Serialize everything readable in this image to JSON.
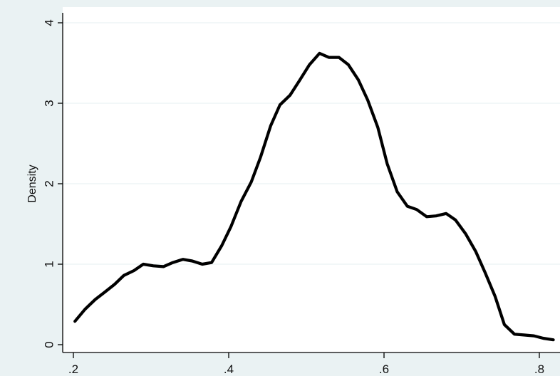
{
  "chart_data": {
    "type": "line",
    "title": "",
    "xlabel": "",
    "ylabel": "Density",
    "xlim": [
      0.2,
      0.82
    ],
    "ylim": [
      0,
      4
    ],
    "grid": true,
    "legend": "none",
    "x_ticks": [
      {
        "value": 0.2,
        "label": ".2"
      },
      {
        "value": 0.4,
        "label": ".4"
      },
      {
        "value": 0.6,
        "label": ".6"
      },
      {
        "value": 0.8,
        "label": ".8"
      }
    ],
    "y_ticks": [
      {
        "value": 0,
        "label": "0"
      },
      {
        "value": 1,
        "label": "1"
      },
      {
        "value": 2,
        "label": "2"
      },
      {
        "value": 3,
        "label": "3"
      },
      {
        "value": 4,
        "label": "4"
      }
    ],
    "series": [
      {
        "color": "#000000",
        "x": [
          0.202,
          0.215,
          0.228,
          0.24,
          0.253,
          0.265,
          0.278,
          0.29,
          0.303,
          0.316,
          0.328,
          0.341,
          0.353,
          0.366,
          0.378,
          0.391,
          0.403,
          0.416,
          0.429,
          0.441,
          0.454,
          0.466,
          0.479,
          0.491,
          0.504,
          0.517,
          0.529,
          0.542,
          0.554,
          0.567,
          0.579,
          0.592,
          0.604,
          0.617,
          0.63,
          0.642,
          0.655,
          0.667,
          0.68,
          0.692,
          0.705,
          0.718,
          0.73,
          0.743,
          0.755,
          0.768,
          0.78,
          0.793,
          0.805,
          0.818
        ],
        "y": [
          0.29,
          0.44,
          0.56,
          0.65,
          0.75,
          0.86,
          0.92,
          1.0,
          0.98,
          0.97,
          1.02,
          1.06,
          1.04,
          1.0,
          1.02,
          1.23,
          1.47,
          1.78,
          2.02,
          2.33,
          2.72,
          2.98,
          3.1,
          3.28,
          3.48,
          3.62,
          3.57,
          3.57,
          3.48,
          3.29,
          3.04,
          2.7,
          2.25,
          1.9,
          1.72,
          1.68,
          1.59,
          1.6,
          1.63,
          1.55,
          1.38,
          1.16,
          0.9,
          0.6,
          0.25,
          0.13,
          0.12,
          0.11,
          0.08,
          0.06
        ]
      }
    ]
  }
}
